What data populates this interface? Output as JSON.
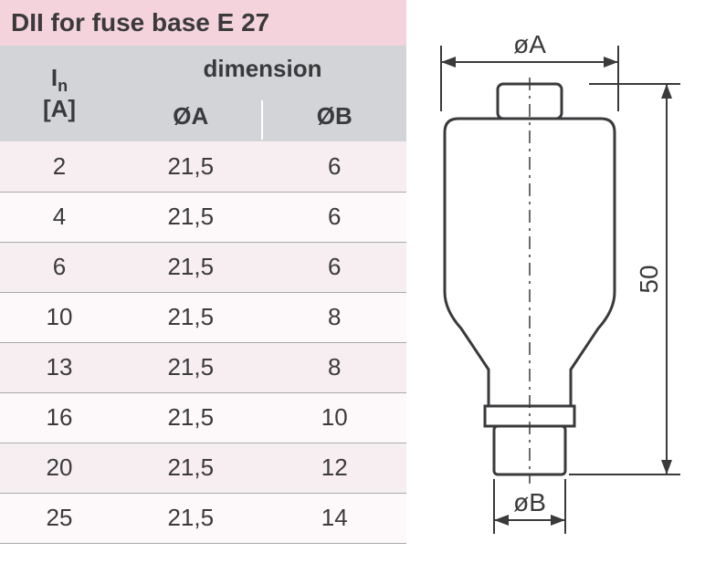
{
  "colors": {
    "title_bg": "#f4d3dc",
    "header_bg": "#d2d4d7",
    "row_odd_bg": "#f7eef2",
    "row_even_bg": "#fdf9fb",
    "row_border": "#a7a9ac",
    "text": "#3a3a3c",
    "diagram_stroke": "#3a3a3c",
    "diagram_fill": "#ffffff"
  },
  "title": "DII for fuse base E 27",
  "header": {
    "col1_line1": "I",
    "col1_sub": "n",
    "col1_line2": "[A]",
    "span_label": "dimension",
    "col2": "ØA",
    "col3": "ØB"
  },
  "rows": [
    {
      "a": "2",
      "oa": "21,5",
      "ob": "6"
    },
    {
      "a": "4",
      "oa": "21,5",
      "ob": "6"
    },
    {
      "a": "6",
      "oa": "21,5",
      "ob": "6"
    },
    {
      "a": "10",
      "oa": "21,5",
      "ob": "8"
    },
    {
      "a": "13",
      "oa": "21,5",
      "ob": "8"
    },
    {
      "a": "16",
      "oa": "21,5",
      "ob": "10"
    },
    {
      "a": "20",
      "oa": "21,5",
      "ob": "12"
    },
    {
      "a": "25",
      "oa": "21,5",
      "ob": "14"
    }
  ],
  "diagram": {
    "label_oa": "øA",
    "label_ob": "øB",
    "label_h": "50"
  }
}
